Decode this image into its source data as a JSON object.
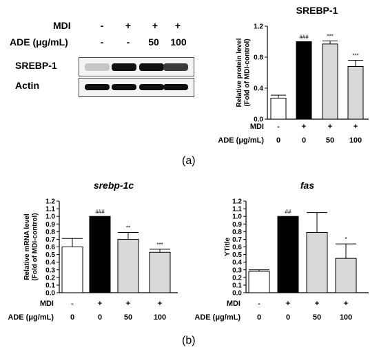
{
  "western_blot": {
    "row_labels": [
      "MDI",
      "ADE (μg/mL)"
    ],
    "lane_values": [
      [
        "-",
        "+",
        "+",
        "+"
      ],
      [
        "-",
        "-",
        "50",
        "100"
      ]
    ],
    "blots": [
      {
        "label": "SREBP-1",
        "band_intensity": [
          0.15,
          1.0,
          1.0,
          0.8
        ]
      },
      {
        "label": "Actin",
        "band_intensity": [
          1.0,
          1.0,
          1.0,
          1.0
        ]
      }
    ]
  },
  "panel_labels": [
    "(a)",
    "(b)"
  ],
  "chart_data": [
    {
      "type": "bar",
      "title": "SREBP-1",
      "title_italic": false,
      "ylabel_lines": [
        "Relative protein level",
        "(Fold of MDI-control)"
      ],
      "ylim": [
        0,
        1.2
      ],
      "yticks": [
        "0.0",
        "0.4",
        "0.8",
        "1.2"
      ],
      "categories": [
        "MDI-/ADE0",
        "MDI+/ADE0",
        "MDI+/ADE50",
        "MDI+/ADE100"
      ],
      "values": [
        0.27,
        1.0,
        0.97,
        0.68
      ],
      "errors": [
        0.04,
        0.0,
        0.04,
        0.08
      ],
      "bar_colors": [
        "#ffffff",
        "#000000",
        "#d9d9d9",
        "#d9d9d9"
      ],
      "annotations": [
        "",
        "###",
        "***",
        "***"
      ],
      "x_rows": [
        {
          "label": "MDI",
          "values": [
            "-",
            "+",
            "+",
            "+"
          ]
        },
        {
          "label": "ADE (μg/mL)",
          "values": [
            "0",
            "0",
            "50",
            "100"
          ]
        }
      ]
    },
    {
      "type": "bar",
      "title": "srebp-1c",
      "title_italic": true,
      "ylabel_lines": [
        "Relative mRNA level",
        "(Fold of MDI-control)"
      ],
      "ylim": [
        0,
        1.2
      ],
      "yticks": [
        "0.0",
        "0.1",
        "0.2",
        "0.3",
        "0.4",
        "0.5",
        "0.6",
        "0.7",
        "0.8",
        "0.9",
        "1.0",
        "1.1",
        "1.2"
      ],
      "categories": [
        "MDI-/ADE0",
        "MDI+/ADE0",
        "MDI+/ADE50",
        "MDI+/ADE100"
      ],
      "values": [
        0.6,
        1.0,
        0.7,
        0.53
      ],
      "errors": [
        0.11,
        0.0,
        0.09,
        0.04
      ],
      "bar_colors": [
        "#ffffff",
        "#000000",
        "#d9d9d9",
        "#d9d9d9"
      ],
      "annotations": [
        "",
        "###",
        "**",
        "***"
      ],
      "x_rows": [
        {
          "label": "MDI",
          "values": [
            "-",
            "+",
            "+",
            "+"
          ]
        },
        {
          "label": "ADE (μg/mL)",
          "values": [
            "0",
            "0",
            "50",
            "100"
          ]
        }
      ]
    },
    {
      "type": "bar",
      "title": "fas",
      "title_italic": true,
      "ylabel_lines": [
        "YTitle"
      ],
      "ylim": [
        0,
        1.2
      ],
      "yticks": [
        "0.0",
        "0.1",
        "0.2",
        "0.3",
        "0.4",
        "0.5",
        "0.6",
        "0.7",
        "0.8",
        "0.9",
        "1.0",
        "1.1",
        "1.2"
      ],
      "categories": [
        "MDI-/ADE0",
        "MDI+/ADE0",
        "MDI+/ADE50",
        "MDI+/ADE100"
      ],
      "values": [
        0.28,
        1.0,
        0.79,
        0.45
      ],
      "errors": [
        0.02,
        0.0,
        0.26,
        0.19
      ],
      "bar_colors": [
        "#ffffff",
        "#000000",
        "#d9d9d9",
        "#d9d9d9"
      ],
      "annotations": [
        "",
        "##",
        "",
        "*"
      ],
      "x_rows": [
        {
          "label": "MDI",
          "values": [
            "-",
            "+",
            "+",
            "+"
          ]
        },
        {
          "label": "ADE (μg/mL)",
          "values": [
            "0",
            "0",
            "50",
            "100"
          ]
        }
      ]
    }
  ]
}
